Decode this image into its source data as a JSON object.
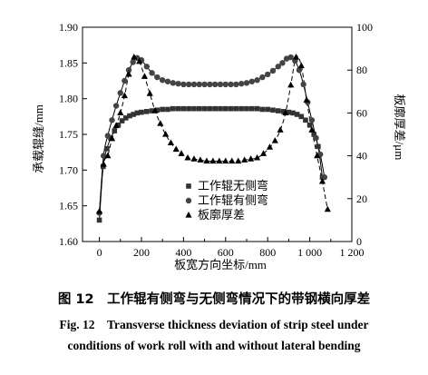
{
  "figure": {
    "caption_cn": "图 12　工作辊有侧弯与无侧弯情况下的带钢横向厚差",
    "caption_en_line1": "Fig. 12　Transverse thickness deviation of strip steel under",
    "caption_en_line2": "conditions of work roll with and without lateral bending"
  },
  "chart_data": {
    "type": "scatter",
    "xlabel": "板宽方向坐标/mm",
    "ylabel_left": "承载辊缝/mm",
    "ylabel_right": "板廓厚差/μm",
    "xlim": [
      -80,
      1200
    ],
    "ylim_left": [
      1.6,
      1.9
    ],
    "ylim_right": [
      0,
      100
    ],
    "x_ticks": [
      0,
      200,
      400,
      600,
      800,
      1000,
      1200
    ],
    "x_tick_labels": [
      "0",
      "200",
      "400",
      "600",
      "800",
      "1 000",
      "1 200"
    ],
    "yl_ticks": [
      1.6,
      1.65,
      1.7,
      1.75,
      1.8,
      1.85,
      1.9
    ],
    "yl_tick_labels": [
      "1.60",
      "1.65",
      "1.70",
      "1.75",
      "1.80",
      "1.85",
      "1.90"
    ],
    "yr_ticks": [
      0,
      20,
      40,
      60,
      80,
      100
    ],
    "yr_tick_labels": [
      "0",
      "20",
      "40",
      "60",
      "80",
      "100"
    ],
    "grid": false,
    "legend_position": "lower-center",
    "series": [
      {
        "name": "工作辊无侧弯",
        "marker": "square",
        "axis": "left",
        "x": [
          0,
          18,
          36,
          54,
          72,
          90,
          108,
          126,
          144,
          162,
          180,
          200,
          225,
          250,
          275,
          300,
          325,
          350,
          375,
          400,
          425,
          450,
          475,
          500,
          525,
          550,
          575,
          600,
          625,
          650,
          675,
          700,
          725,
          750,
          775,
          800,
          825,
          850,
          875,
          900,
          920,
          940,
          960,
          980,
          1000,
          1020,
          1040,
          1060
        ],
        "y": [
          1.63,
          1.705,
          1.73,
          1.745,
          1.755,
          1.763,
          1.769,
          1.773,
          1.776,
          1.778,
          1.78,
          1.781,
          1.782,
          1.783,
          1.784,
          1.785,
          1.785,
          1.786,
          1.786,
          1.786,
          1.786,
          1.786,
          1.786,
          1.786,
          1.786,
          1.786,
          1.786,
          1.786,
          1.786,
          1.786,
          1.786,
          1.786,
          1.786,
          1.786,
          1.785,
          1.785,
          1.784,
          1.783,
          1.782,
          1.781,
          1.78,
          1.778,
          1.775,
          1.77,
          1.763,
          1.75,
          1.733,
          1.69
        ]
      },
      {
        "name": "工作辊有侧弯",
        "marker": "circle",
        "axis": "left",
        "x": [
          0,
          20,
          40,
          60,
          80,
          100,
          120,
          140,
          160,
          180,
          200,
          225,
          250,
          275,
          300,
          325,
          350,
          375,
          400,
          425,
          450,
          475,
          500,
          525,
          550,
          575,
          600,
          625,
          650,
          675,
          700,
          725,
          750,
          775,
          800,
          825,
          850,
          870,
          890,
          910,
          930,
          950,
          970,
          990,
          1010,
          1030,
          1050,
          1070
        ],
        "y": [
          1.64,
          1.72,
          1.748,
          1.77,
          1.79,
          1.808,
          1.825,
          1.84,
          1.851,
          1.857,
          1.854,
          1.845,
          1.836,
          1.83,
          1.826,
          1.824,
          1.822,
          1.821,
          1.82,
          1.82,
          1.82,
          1.82,
          1.82,
          1.82,
          1.82,
          1.82,
          1.82,
          1.82,
          1.82,
          1.821,
          1.822,
          1.824,
          1.826,
          1.83,
          1.834,
          1.839,
          1.845,
          1.85,
          1.856,
          1.858,
          1.853,
          1.84,
          1.82,
          1.795,
          1.77,
          1.745,
          1.722,
          1.69
        ]
      },
      {
        "name": "板廓厚差",
        "marker": "triangle",
        "axis": "right",
        "x": [
          0,
          20,
          40,
          60,
          80,
          100,
          120,
          140,
          165,
          190,
          215,
          240,
          265,
          290,
          315,
          340,
          365,
          390,
          420,
          450,
          480,
          510,
          540,
          570,
          600,
          630,
          660,
          690,
          720,
          750,
          780,
          810,
          835,
          860,
          885,
          910,
          935,
          960,
          985,
          1010,
          1035,
          1060,
          1085
        ],
        "y": [
          14,
          36,
          40,
          48,
          54,
          60,
          68,
          78,
          86,
          84,
          77,
          69,
          61,
          55,
          50,
          46,
          43,
          41,
          39,
          38.5,
          38,
          37.5,
          37.5,
          37.5,
          37.5,
          37.5,
          37.5,
          38,
          38.5,
          39,
          41,
          44,
          47,
          52,
          60,
          73,
          86,
          82,
          66,
          52,
          40,
          28,
          15
        ]
      }
    ]
  }
}
